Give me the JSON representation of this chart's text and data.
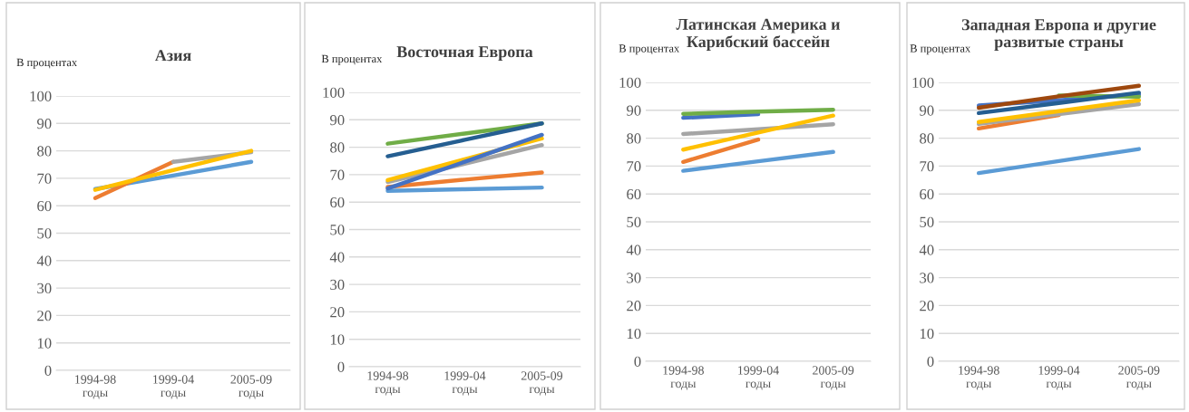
{
  "chart_data": [
    {
      "type": "line",
      "title": "Азия",
      "ylabel": "В процентах",
      "categories": [
        "1994-98\nгоды",
        "1999-04\nгоды",
        "2005-09\nгоды"
      ],
      "ylim": [
        0,
        100
      ],
      "yticks": [
        0,
        10,
        20,
        30,
        40,
        50,
        60,
        70,
        80,
        90,
        100
      ],
      "grid": "y",
      "legend": false,
      "marker": "none",
      "line_style": "solid",
      "series": [
        {
          "color": "#5b9bd5",
          "values": [
            66.1,
            71,
            76
          ]
        },
        {
          "color": "#ed7d31",
          "values": [
            62.8,
            76,
            null
          ]
        },
        {
          "color": "#a5a5a5",
          "values": [
            null,
            76,
            79.5
          ]
        },
        {
          "color": "#ffc000",
          "values": [
            65.8,
            73,
            80
          ]
        }
      ]
    },
    {
      "type": "line",
      "title": "Восточная Европа",
      "ylabel": "В процентах",
      "categories": [
        "1994-98\nгоды",
        "1999-04\nгоды",
        "2005-09\nгоды"
      ],
      "ylim": [
        0,
        100
      ],
      "yticks": [
        0,
        10,
        20,
        30,
        40,
        50,
        60,
        70,
        80,
        90,
        100
      ],
      "grid": "y",
      "legend": false,
      "marker": "none",
      "line_style": "solid",
      "series": [
        {
          "color": "#5b9bd5",
          "values": [
            64.1,
            64.7,
            65.3
          ]
        },
        {
          "color": "#ed7d31",
          "values": [
            65.5,
            68.2,
            70.8
          ]
        },
        {
          "color": "#a5a5a5",
          "values": [
            67.3,
            74,
            80.8
          ]
        },
        {
          "color": "#ffc000",
          "values": [
            68,
            75.6,
            83.2
          ]
        },
        {
          "color": "#4472c4",
          "values": [
            65,
            74.7,
            84.5
          ]
        },
        {
          "color": "#70ad47",
          "values": [
            81.3,
            85,
            88.7
          ]
        },
        {
          "color": "#255e91",
          "values": [
            76.7,
            82.7,
            88.7
          ]
        }
      ]
    },
    {
      "type": "line",
      "title": "Латинская Америка и\nКарибский бассейн",
      "ylabel": "В процентах",
      "categories": [
        "1994-98\nгоды",
        "1999-04\nгоды",
        "2005-09\nгоды"
      ],
      "ylim": [
        0,
        100
      ],
      "yticks": [
        0,
        10,
        20,
        30,
        40,
        50,
        60,
        70,
        80,
        90,
        100
      ],
      "grid": "y",
      "legend": false,
      "marker": "none",
      "line_style": "solid",
      "series": [
        {
          "color": "#5b9bd5",
          "values": [
            68.3,
            71.7,
            75.1
          ]
        },
        {
          "color": "#ed7d31",
          "values": [
            71.5,
            79.5,
            null
          ]
        },
        {
          "color": "#a5a5a5",
          "values": [
            81.5,
            83.2,
            85
          ]
        },
        {
          "color": "#ffc000",
          "values": [
            75.9,
            82,
            88.1
          ]
        },
        {
          "color": "#4472c4",
          "values": [
            87.3,
            88.6,
            null
          ]
        },
        {
          "color": "#70ad47",
          "values": [
            88.7,
            89.5,
            90.2
          ]
        }
      ]
    },
    {
      "type": "line",
      "title": "Западная Европа и другие\nразвитые страны",
      "ylabel": "В процентах",
      "categories": [
        "1994-98\nгоды",
        "1999-04\nгоды",
        "2005-09\nгоды"
      ],
      "ylim": [
        0,
        100
      ],
      "yticks": [
        0,
        10,
        20,
        30,
        40,
        50,
        60,
        70,
        80,
        90,
        100
      ],
      "grid": "y",
      "legend": false,
      "marker": "none",
      "line_style": "solid",
      "series": [
        {
          "color": "#5b9bd5",
          "values": [
            67.5,
            71.8,
            76.1
          ]
        },
        {
          "color": "#ed7d31",
          "values": [
            83.5,
            88.3,
            null
          ]
        },
        {
          "color": "#a5a5a5",
          "values": [
            85.1,
            88.6,
            92.2
          ]
        },
        {
          "color": "#ffc000",
          "values": [
            85.8,
            89.7,
            93.6
          ]
        },
        {
          "color": "#4472c4",
          "values": [
            91.7,
            93.6,
            95.6
          ]
        },
        {
          "color": "#70ad47",
          "values": [
            null,
            95.3,
            94.9
          ]
        },
        {
          "color": "#255e91",
          "values": [
            89,
            92.6,
            96.3
          ]
        },
        {
          "color": "#9e480e",
          "values": [
            90.9,
            95,
            98.8
          ]
        }
      ]
    }
  ]
}
